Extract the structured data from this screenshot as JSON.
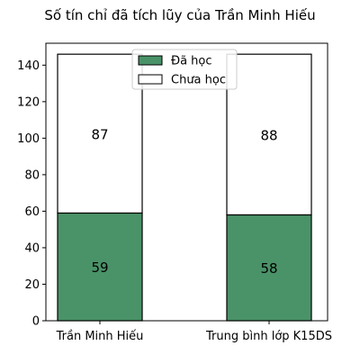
{
  "chart_data": {
    "type": "bar",
    "stacked": true,
    "title": "Số tín chỉ đã tích lũy của Trần Minh Hiếu",
    "xlabel": "",
    "ylabel": "",
    "categories": [
      "Trần Minh Hiếu",
      "Trung bình lớp K15DS"
    ],
    "series": [
      {
        "name": "Đã học",
        "values": [
          59,
          58
        ],
        "color": "#4a9268"
      },
      {
        "name": "Chưa học",
        "values": [
          87,
          88
        ],
        "color": "#ffffff"
      }
    ],
    "ylim": [
      0,
      152
    ],
    "yticks": [
      0,
      20,
      40,
      60,
      80,
      100,
      120,
      140
    ],
    "grid": false,
    "legend_position": "top-center",
    "data_labels": true
  }
}
